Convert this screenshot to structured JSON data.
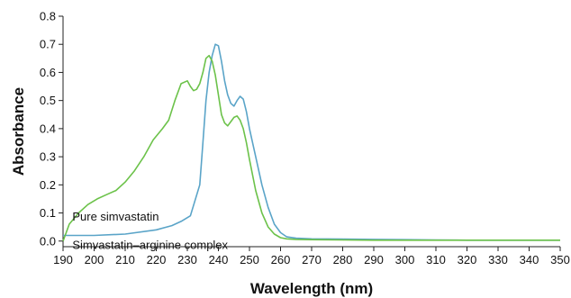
{
  "chart_data": {
    "type": "line",
    "title": "",
    "xlabel": "Wavelength (nm)",
    "ylabel": "Absorbance",
    "xlim": [
      190,
      350
    ],
    "ylim": [
      -0.02,
      0.8
    ],
    "x_ticks": [
      190,
      200,
      210,
      220,
      230,
      240,
      250,
      260,
      270,
      280,
      290,
      300,
      310,
      320,
      330,
      340,
      350
    ],
    "x_tick_labels": [
      "190",
      "200",
      "210",
      "220",
      "230",
      "240",
      "250",
      "260",
      "270",
      "280",
      "290",
      "300",
      "310",
      "320",
      "330",
      "340",
      "350"
    ],
    "y_ticks": [
      0.0,
      0.1,
      0.2,
      0.3,
      0.4,
      0.5,
      0.6,
      0.7,
      0.8
    ],
    "y_tick_labels": [
      "0.0",
      "0.1",
      "0.2",
      "0.3",
      "0.4",
      "0.5",
      "0.6",
      "0.7",
      "0.8"
    ],
    "grid": false,
    "series": [
      {
        "color": "#5aa4c8",
        "x": [
          190,
          200,
          210,
          220,
          225,
          228,
          231,
          234,
          235,
          236,
          237,
          238,
          239,
          240,
          241,
          242,
          243,
          244,
          245,
          246,
          247,
          248,
          249,
          250,
          252,
          254,
          256,
          258,
          260,
          262,
          265,
          270,
          280,
          290,
          300,
          310,
          320,
          330,
          340,
          350
        ],
        "y": [
          0.02,
          0.02,
          0.025,
          0.04,
          0.055,
          0.07,
          0.09,
          0.2,
          0.35,
          0.5,
          0.6,
          0.66,
          0.7,
          0.695,
          0.64,
          0.57,
          0.52,
          0.49,
          0.48,
          0.5,
          0.515,
          0.505,
          0.46,
          0.4,
          0.3,
          0.2,
          0.12,
          0.06,
          0.03,
          0.015,
          0.01,
          0.008,
          0.007,
          0.006,
          0.005,
          0.004,
          0.003,
          0.003,
          0.003,
          0.003
        ]
      },
      {
        "color": "#6cc24a",
        "x": [
          190,
          191,
          192,
          195,
          198,
          201,
          204,
          207,
          210,
          213,
          216,
          219,
          222,
          224,
          226,
          228,
          230,
          231,
          232,
          233,
          234,
          235,
          236,
          237,
          238,
          239,
          240,
          241,
          242,
          243,
          244,
          245,
          246,
          247,
          248,
          249,
          250,
          252,
          254,
          256,
          258,
          260,
          262,
          265,
          270,
          280,
          290,
          300,
          310,
          320,
          330,
          340,
          350
        ],
        "y": [
          0.0,
          0.03,
          0.06,
          0.1,
          0.13,
          0.15,
          0.165,
          0.18,
          0.21,
          0.25,
          0.3,
          0.36,
          0.4,
          0.43,
          0.5,
          0.56,
          0.57,
          0.55,
          0.535,
          0.54,
          0.56,
          0.6,
          0.65,
          0.66,
          0.64,
          0.59,
          0.52,
          0.45,
          0.42,
          0.41,
          0.425,
          0.44,
          0.445,
          0.43,
          0.4,
          0.35,
          0.29,
          0.18,
          0.1,
          0.05,
          0.025,
          0.012,
          0.008,
          0.006,
          0.005,
          0.004,
          0.003,
          0.003,
          0.003,
          0.003,
          0.003,
          0.003,
          0.003
        ]
      }
    ],
    "annotations": [
      {
        "text": "Pure simvastatin",
        "x": 193,
        "y": 0.085
      },
      {
        "text": "Simvastatin–arginine complex",
        "x": 193,
        "y": -0.015
      }
    ]
  }
}
